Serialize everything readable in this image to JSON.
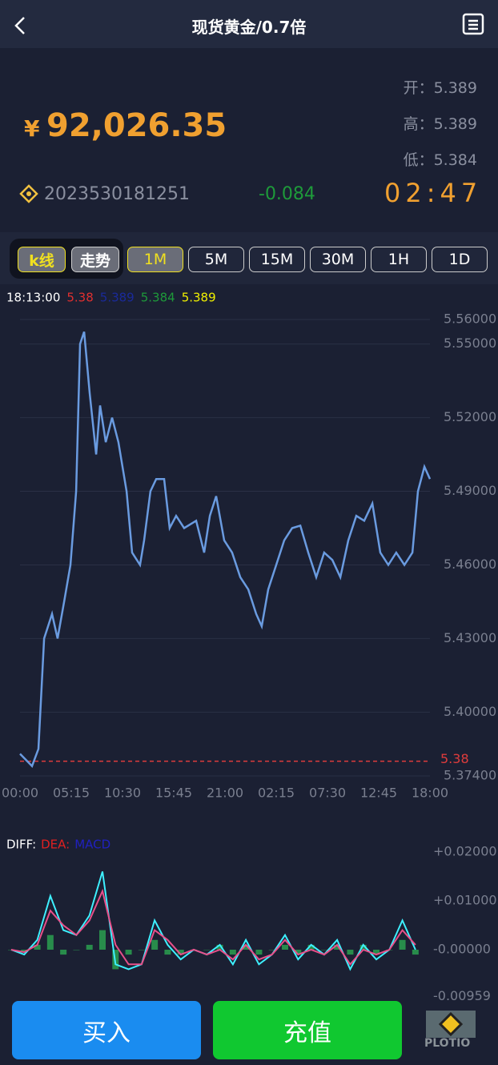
{
  "header": {
    "title": "现货黄金/0.7倍"
  },
  "quote": {
    "currency": "¥",
    "price": "92,026.35",
    "stats": [
      {
        "label": "开：",
        "value": "5.389"
      },
      {
        "label": "高：",
        "value": "5.389"
      },
      {
        "label": "低：",
        "value": "5.384"
      }
    ],
    "code": "2023530181251",
    "change": "-0.084",
    "countdown": "02:47"
  },
  "tabs": {
    "modes": [
      "k线",
      "走势"
    ],
    "periods": [
      "1M",
      "5M",
      "15M",
      "30M",
      "1H",
      "1D"
    ]
  },
  "info_row": [
    {
      "text": "18:13:00",
      "color": "#ffffff"
    },
    {
      "text": "5.38",
      "color": "#e03030"
    },
    {
      "text": "5.389",
      "color": "#1a2a9a"
    },
    {
      "text": "5.384",
      "color": "#1e9a3a"
    },
    {
      "text": "5.389",
      "color": "#f0f000"
    }
  ],
  "chart_data": [
    {
      "type": "line",
      "color": "#6a9be0",
      "grid": true,
      "x": [
        0,
        74,
        113,
        148,
        197,
        231,
        271,
        310,
        345,
        369,
        394,
        428,
        468,
        492,
        527,
        566,
        605,
        655,
        689,
        738,
        763,
        802,
        837,
        886,
        920,
        960,
        1009,
        1083,
        1132,
        1167,
        1206,
        1255,
        1304,
        1354,
        1403,
        1452,
        1486,
        1526,
        1575,
        1624,
        1673,
        1723,
        1772,
        1821,
        1870,
        1920,
        1969,
        2018,
        2067,
        2116,
        2166,
        2215,
        2264,
        2313,
        2363,
        2412,
        2446,
        2486,
        2520
      ],
      "values": [
        5.383,
        5.378,
        5.385,
        5.43,
        5.44,
        5.43,
        5.445,
        5.46,
        5.49,
        5.55,
        5.555,
        5.53,
        5.505,
        5.525,
        5.51,
        5.52,
        5.51,
        5.49,
        5.465,
        5.46,
        5.47,
        5.49,
        5.495,
        5.495,
        5.475,
        5.48,
        5.475,
        5.478,
        5.465,
        5.48,
        5.488,
        5.47,
        5.465,
        5.455,
        5.45,
        5.44,
        5.435,
        5.45,
        5.46,
        5.47,
        5.475,
        5.476,
        5.465,
        5.455,
        5.465,
        5.462,
        5.455,
        5.47,
        5.48,
        5.478,
        5.485,
        5.465,
        5.46,
        5.465,
        5.46,
        5.465,
        5.49,
        5.5,
        5.495
      ],
      "xlim": [
        0,
        2520
      ],
      "xticks": [
        {
          "value": 0,
          "label": "00:00"
        },
        {
          "value": 315,
          "label": "05:15"
        },
        {
          "value": 630,
          "label": "10:30"
        },
        {
          "value": 945,
          "label": "15:45"
        },
        {
          "value": 1260,
          "label": "21:00"
        },
        {
          "value": 1575,
          "label": "02:15"
        },
        {
          "value": 1890,
          "label": "07:30"
        },
        {
          "value": 2205,
          "label": "12:45"
        },
        {
          "value": 2520,
          "label": "18:00"
        }
      ],
      "ylim": [
        5.374,
        5.56
      ],
      "yticks": [
        {
          "value": 5.56,
          "label": "5.56000"
        },
        {
          "value": 5.55,
          "label": "5.55000"
        },
        {
          "value": 5.52,
          "label": "5.52000"
        },
        {
          "value": 5.49,
          "label": "5.49000"
        },
        {
          "value": 5.46,
          "label": "5.46000"
        },
        {
          "value": 5.43,
          "label": "5.43000"
        },
        {
          "value": 5.4,
          "label": "5.40000"
        },
        {
          "value": 5.374,
          "label": "5.37400"
        }
      ],
      "reference_line": 5.38,
      "reference_color": "#e03c3c"
    },
    {
      "type": "macd",
      "grid": false,
      "x": [
        0,
        80,
        160,
        240,
        320,
        400,
        480,
        560,
        640,
        720,
        800,
        880,
        960,
        1040,
        1120,
        1200,
        1280,
        1360,
        1440,
        1520,
        1600,
        1680,
        1760,
        1840,
        1920,
        2000,
        2080,
        2160,
        2240,
        2320,
        2400,
        2480
      ],
      "series": [
        {
          "name": "DIFF:",
          "color": "#3ef0ff",
          "legend_color": "#ffffff",
          "kind": "line",
          "values": [
            0,
            -0.001,
            0.002,
            0.011,
            0.004,
            0.003,
            0.007,
            0.016,
            -0.003,
            -0.004,
            -0.003,
            0.006,
            0.001,
            -0.002,
            0,
            -0.001,
            0.001,
            -0.003,
            0.002,
            -0.003,
            -0.001,
            0.003,
            -0.002,
            0.001,
            -0.001,
            0.002,
            -0.004,
            0.001,
            -0.002,
            0,
            0.006,
            0
          ]
        },
        {
          "name": "DEA:",
          "color": "#e8508a",
          "legend_color": "#e02020",
          "kind": "line",
          "values": [
            0,
            -0.0005,
            0.001,
            0.008,
            0.005,
            0.003,
            0.006,
            0.012,
            0.001,
            -0.003,
            -0.003,
            0.004,
            0.002,
            -0.001,
            0,
            -0.001,
            0,
            -0.002,
            0.001,
            -0.002,
            -0.001,
            0.002,
            -0.001,
            0,
            -0.001,
            0.001,
            -0.003,
            0,
            -0.001,
            0,
            0.004,
            0.001
          ]
        },
        {
          "name": "MACD",
          "color": "#2aa050",
          "legend_color": "#2020c0",
          "kind": "bar",
          "values": [
            0,
            -0.0005,
            0.001,
            0.003,
            -0.001,
            0,
            0.001,
            0.004,
            -0.004,
            -0.001,
            0,
            0.002,
            -0.001,
            -0.001,
            0,
            0,
            0.001,
            -0.001,
            0.001,
            -0.001,
            0,
            0.001,
            -0.001,
            0.001,
            0,
            0.001,
            -0.001,
            0.001,
            -0.001,
            0,
            0.002,
            -0.001
          ]
        }
      ],
      "xlim": [
        0,
        2520
      ],
      "ylim": [
        -0.00959,
        0.02
      ],
      "yticks": [
        {
          "value": 0.02,
          "label": "+0.02000"
        },
        {
          "value": 0.01,
          "label": "+0.01000"
        },
        {
          "value": 0,
          "label": "-0.00000"
        },
        {
          "value": -0.00959,
          "label": "-0.00959"
        }
      ]
    }
  ],
  "buttons": [
    "买入",
    "充值"
  ],
  "logo": "PLOTIO"
}
